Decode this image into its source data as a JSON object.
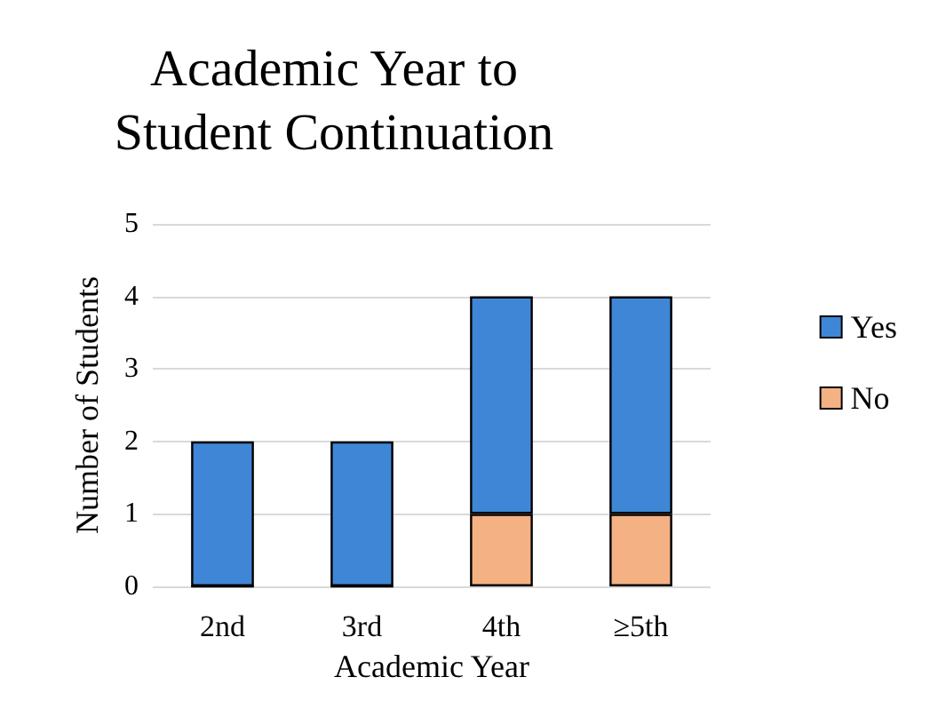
{
  "chart_data": {
    "type": "bar",
    "title": "Academic Year to\nStudent Continuation",
    "xlabel": "Academic Year",
    "ylabel": "Number of Students",
    "categories": [
      "2nd",
      "3rd",
      "4th",
      "≥5th"
    ],
    "stacked": true,
    "series": [
      {
        "name": "No",
        "color": "#f4b183",
        "values": [
          0,
          0,
          1,
          1
        ]
      },
      {
        "name": "Yes",
        "color": "#3f87d6",
        "values": [
          2,
          2,
          3,
          3
        ]
      }
    ],
    "ylim": [
      0,
      5
    ],
    "yticks": [
      0,
      1,
      2,
      3,
      4,
      5
    ],
    "grid": "y",
    "legend": "right"
  }
}
